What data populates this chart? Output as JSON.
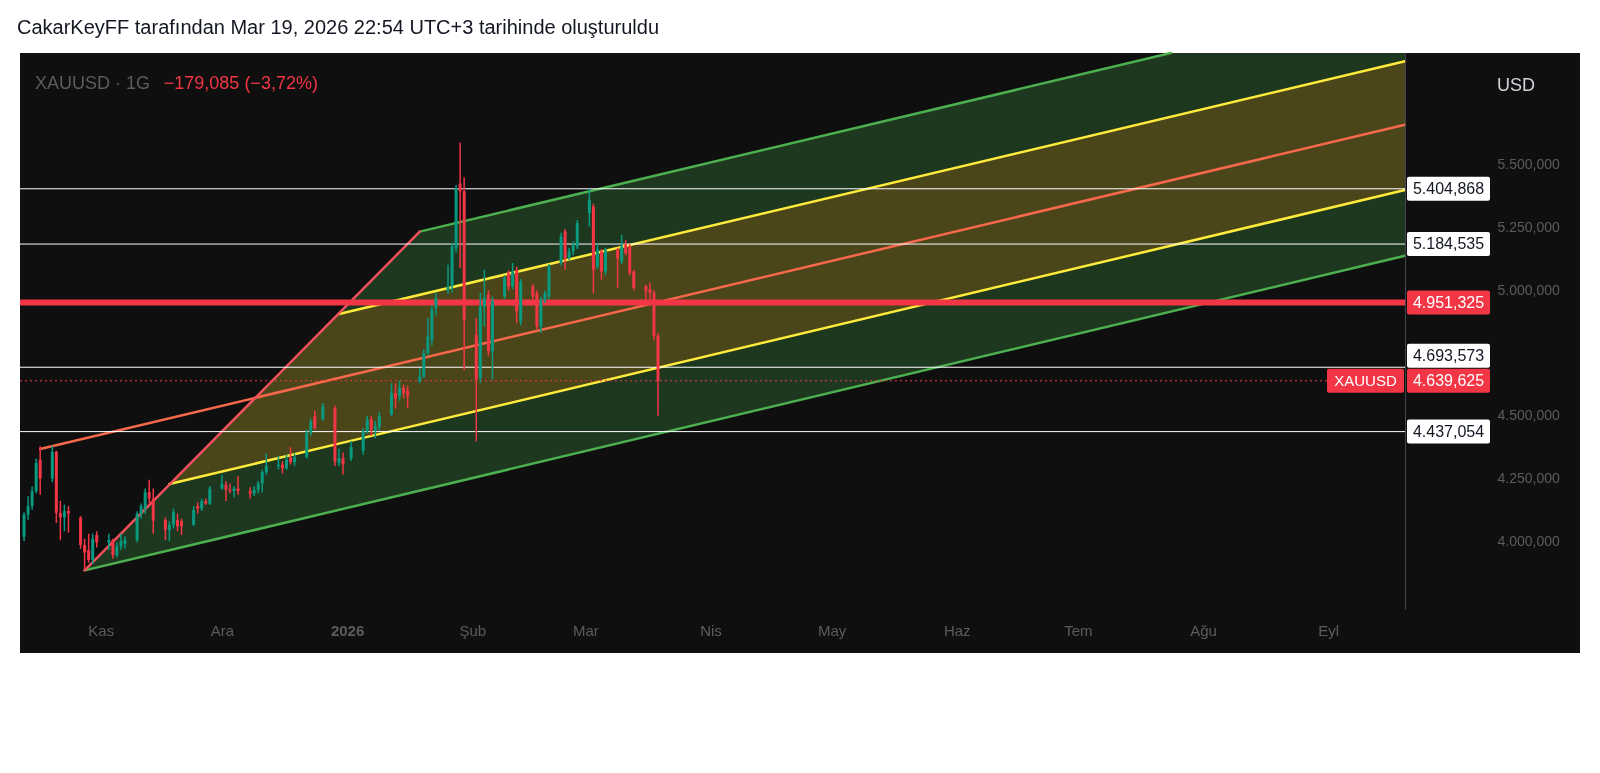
{
  "chart_data": {
    "type": "candlestick",
    "title": "CakarKeyFF tarafından Mar 19, 2026 22:54 UTC+3 tarihinde oluşturuldu",
    "ylabel": "USD",
    "annotations": [
      "XAUUSD · 1G",
      "−179,085 (−3,72%)",
      {
        "text": "XAUUSD",
        "y": 4639.625
      }
    ],
    "x": [
      "2025-10-13",
      "2025-10-14",
      "2025-10-15",
      "2025-10-16",
      "2025-10-17",
      "2025-10-20",
      "2025-10-21",
      "2025-10-22",
      "2025-10-23",
      "2025-10-24",
      "2025-10-27",
      "2025-10-28",
      "2025-10-29",
      "2025-10-30",
      "2025-10-31",
      "2025-11-03",
      "2025-11-04",
      "2025-11-05",
      "2025-11-06",
      "2025-11-07",
      "2025-11-10",
      "2025-11-11",
      "2025-11-12",
      "2025-11-13",
      "2025-11-14",
      "2025-11-17",
      "2025-11-18",
      "2025-11-19",
      "2025-11-20",
      "2025-11-21",
      "2025-11-24",
      "2025-11-25",
      "2025-11-26",
      "2025-11-27",
      "2025-11-28",
      "2025-12-01",
      "2025-12-02",
      "2025-12-03",
      "2025-12-04",
      "2025-12-05",
      "2025-12-08",
      "2025-12-09",
      "2025-12-10",
      "2025-12-11",
      "2025-12-12",
      "2025-12-15",
      "2025-12-16",
      "2025-12-17",
      "2025-12-18",
      "2025-12-19",
      "2025-12-22",
      "2025-12-23",
      "2025-12-24",
      "2025-12-26",
      "2025-12-29",
      "2025-12-30",
      "2025-12-31",
      "2026-01-02",
      "2026-01-05",
      "2026-01-06",
      "2026-01-07",
      "2026-01-08",
      "2026-01-09",
      "2026-01-12",
      "2026-01-13",
      "2026-01-14",
      "2026-01-15",
      "2026-01-16",
      "2026-01-19",
      "2026-01-20",
      "2026-01-21",
      "2026-01-22",
      "2026-01-23",
      "2026-01-26",
      "2026-01-27",
      "2026-01-28",
      "2026-01-29",
      "2026-01-30",
      "2026-02-02",
      "2026-02-03",
      "2026-02-04",
      "2026-02-05",
      "2026-02-06",
      "2026-02-09",
      "2026-02-10",
      "2026-02-11",
      "2026-02-12",
      "2026-02-13",
      "2026-02-16",
      "2026-02-17",
      "2026-02-18",
      "2026-02-19",
      "2026-02-20",
      "2026-02-23",
      "2026-02-24",
      "2026-02-25",
      "2026-02-26",
      "2026-02-27",
      "2026-03-02",
      "2026-03-03",
      "2026-03-04",
      "2026-03-05",
      "2026-03-06",
      "2026-03-09",
      "2026-03-10",
      "2026-03-11",
      "2026-03-12",
      "2026-03-13",
      "2026-03-16",
      "2026-03-17",
      "2026-03-18",
      "2026-03-19"
    ],
    "ohlc": [
      [
        4018,
        4116,
        4000,
        4106
      ],
      [
        4106,
        4179,
        4086,
        4140
      ],
      [
        4140,
        4218,
        4126,
        4199
      ],
      [
        4199,
        4330,
        4190,
        4312
      ],
      [
        4325,
        4379,
        4185,
        4250
      ],
      [
        4250,
        4381,
        4235,
        4356
      ],
      [
        4356,
        4361,
        4073,
        4113
      ],
      [
        4113,
        4161,
        4004,
        4095
      ],
      [
        4095,
        4146,
        4040,
        4120
      ],
      [
        4120,
        4140,
        4035,
        4110
      ],
      [
        4095,
        4100,
        3970,
        3985
      ],
      [
        3985,
        4010,
        3886,
        3955
      ],
      [
        3965,
        4030,
        3915,
        3925
      ],
      [
        3925,
        4030,
        3910,
        4010
      ],
      [
        4025,
        4040,
        3975,
        3995
      ],
      [
        3995,
        4030,
        3965,
        4005
      ],
      [
        4005,
        4010,
        3930,
        3945
      ],
      [
        3945,
        3995,
        3935,
        3980
      ],
      [
        3980,
        4030,
        3965,
        4000
      ],
      [
        3990,
        4020,
        3970,
        4005
      ],
      [
        4005,
        4120,
        3995,
        4110
      ],
      [
        4110,
        4150,
        4090,
        4140
      ],
      [
        4130,
        4210,
        4110,
        4195
      ],
      [
        4195,
        4245,
        4150,
        4170
      ],
      [
        4170,
        4210,
        4030,
        4080
      ],
      [
        4085,
        4095,
        4005,
        4045
      ],
      [
        4045,
        4080,
        4000,
        4065
      ],
      [
        4065,
        4130,
        4050,
        4115
      ],
      [
        4085,
        4110,
        4040,
        4060
      ],
      [
        4080,
        4090,
        4025,
        4060
      ],
      [
        4065,
        4140,
        4060,
        4125
      ],
      [
        4140,
        4155,
        4110,
        4130
      ],
      [
        4130,
        4170,
        4120,
        4160
      ],
      [
        4160,
        4170,
        4145,
        4150
      ],
      [
        4150,
        4220,
        4145,
        4210
      ],
      [
        4210,
        4265,
        4205,
        4230
      ],
      [
        4225,
        4240,
        4160,
        4205
      ],
      [
        4205,
        4230,
        4190,
        4200
      ],
      [
        4200,
        4220,
        4175,
        4210
      ],
      [
        4210,
        4260,
        4185,
        4200
      ],
      [
        4200,
        4215,
        4170,
        4190
      ],
      [
        4190,
        4220,
        4180,
        4205
      ],
      [
        4205,
        4240,
        4190,
        4230
      ],
      [
        4230,
        4285,
        4195,
        4275
      ],
      [
        4275,
        4350,
        4265,
        4300
      ],
      [
        4300,
        4340,
        4285,
        4305
      ],
      [
        4305,
        4320,
        4270,
        4290
      ],
      [
        4290,
        4345,
        4285,
        4325
      ],
      [
        4335,
        4375,
        4305,
        4315
      ],
      [
        4315,
        4350,
        4300,
        4335
      ],
      [
        4335,
        4445,
        4330,
        4432
      ],
      [
        4432,
        4490,
        4420,
        4478
      ],
      [
        4498,
        4520,
        4445,
        4450
      ],
      [
        4485,
        4551,
        4480,
        4538
      ],
      [
        4531,
        4540,
        4300,
        4319
      ],
      [
        4312,
        4370,
        4300,
        4332
      ],
      [
        4332,
        4355,
        4266,
        4306
      ],
      [
        4330,
        4400,
        4320,
        4375
      ],
      [
        4360,
        4450,
        4345,
        4438
      ],
      [
        4438,
        4500,
        4430,
        4485
      ],
      [
        4485,
        4500,
        4420,
        4445
      ],
      [
        4440,
        4480,
        4410,
        4458
      ],
      [
        4455,
        4515,
        4440,
        4498
      ],
      [
        4505,
        4630,
        4500,
        4591
      ],
      [
        4590,
        4630,
        4530,
        4570
      ],
      [
        4578,
        4640,
        4560,
        4611
      ],
      [
        4611,
        4625,
        4570,
        4590
      ],
      [
        4600,
        4620,
        4531,
        4580
      ],
      [
        4637,
        4690,
        4630,
        4657
      ],
      [
        4657,
        4765,
        4650,
        4750
      ],
      [
        4750,
        4890,
        4740,
        4816
      ],
      [
        4803,
        4940,
        4780,
        4923
      ],
      [
        4930,
        4990,
        4900,
        4969
      ],
      [
        5000,
        5102,
        4985,
        5016
      ],
      [
        5016,
        5190,
        4990,
        5175
      ],
      [
        5168,
        5420,
        5150,
        5407
      ],
      [
        5425,
        5589,
        5089,
        5395
      ],
      [
        5395,
        5450,
        4683,
        4883
      ],
      [
        4823,
        4890,
        4398,
        4644
      ],
      [
        4651,
        4990,
        4630,
        4936
      ],
      [
        4936,
        5082,
        4856,
        4970
      ],
      [
        4982,
        5000,
        4740,
        4757
      ],
      [
        4757,
        4975,
        4644,
        4956
      ],
      [
        4976,
        5060,
        4965,
        5049
      ],
      [
        5069,
        5080,
        5000,
        5016
      ],
      [
        5016,
        5109,
        5005,
        5075
      ],
      [
        5082,
        5095,
        4870,
        4916
      ],
      [
        4876,
        5045,
        4860,
        5036
      ],
      [
        5016,
        5025,
        4965,
        4976
      ],
      [
        4989,
        5000,
        4845,
        4856
      ],
      [
        4856,
        4975,
        4830,
        4963
      ],
      [
        4963,
        5000,
        4950,
        4989
      ],
      [
        4976,
        5105,
        4965,
        5095
      ],
      [
        5109,
        5230,
        5100,
        5215
      ],
      [
        5235,
        5245,
        5082,
        5128
      ],
      [
        5128,
        5170,
        5120,
        5155
      ],
      [
        5155,
        5195,
        5140,
        5182
      ],
      [
        5175,
        5280,
        5165,
        5268
      ],
      [
        5308,
        5405,
        5255,
        5361
      ],
      [
        5334,
        5345,
        4989,
        5082
      ],
      [
        5095,
        5188,
        5085,
        5162
      ],
      [
        5155,
        5165,
        5042,
        5075
      ],
      [
        5075,
        5170,
        5060,
        5162
      ],
      [
        5162,
        5170,
        5009,
        5128
      ],
      [
        5115,
        5221,
        5105,
        5175
      ],
      [
        5182,
        5200,
        5140,
        5148
      ],
      [
        5175,
        5185,
        5060,
        5069
      ],
      [
        5075,
        5082,
        5000,
        5009
      ],
      [
        5016,
        5022,
        4963,
        4996
      ],
      [
        5003,
        5030,
        4963,
        4990
      ],
      [
        4989,
        5000,
        4800,
        4819
      ],
      [
        4819,
        4830,
        4500,
        4640
      ]
    ],
    "colors": [
      "#089981",
      "#089981",
      "#089981",
      "#089981",
      "#f23645",
      "#089981",
      "#f23645",
      "#f23645",
      "#089981",
      "#f23645",
      "#f23645",
      "#f23645",
      "#f23645",
      "#089981",
      "#f23645",
      "#089981",
      "#f23645",
      "#089981",
      "#089981",
      "#089981",
      "#089981",
      "#089981",
      "#089981",
      "#f23645",
      "#f23645",
      "#f23645",
      "#089981",
      "#089981",
      "#f23645",
      "#f23645",
      "#089981",
      "#f23645",
      "#089981",
      "#f23645",
      "#089981",
      "#089981",
      "#f23645",
      "#f23645",
      "#089981",
      "#f23645",
      "#f23645",
      "#089981",
      "#089981",
      "#089981",
      "#089981",
      "#089981",
      "#f23645",
      "#089981",
      "#f23645",
      "#089981",
      "#089981",
      "#089981",
      "#f23645",
      "#089981",
      "#f23645",
      "#089981",
      "#f23645",
      "#089981",
      "#089981",
      "#089981",
      "#f23645",
      "#089981",
      "#089981",
      "#089981",
      "#f23645",
      "#089981",
      "#f23645",
      "#f23645",
      "#089981",
      "#089981",
      "#089981",
      "#089981",
      "#089981",
      "#089981",
      "#089981",
      "#089981",
      "#f23645",
      "#f23645",
      "#f23645",
      "#089981",
      "#089981",
      "#f23645",
      "#089981",
      "#089981",
      "#f23645",
      "#089981",
      "#f23645",
      "#089981",
      "#f23645",
      "#f23645",
      "#089981",
      "#089981",
      "#089981",
      "#089981",
      "#f23645",
      "#089981",
      "#089981",
      "#089981",
      "#089981",
      "#f23645",
      "#089981",
      "#f23645",
      "#089981",
      "#f23645",
      "#089981",
      "#f23645",
      "#f23645",
      "#f23645",
      "#f23645",
      "#f23645",
      "#f23645",
      "#f23645"
    ],
    "series": [
      {
        "type": "line",
        "color": "#4caf50",
        "x": [
          "2025-10-28",
          "2025-11-18",
          "2026-09-20"
        ],
        "values": [
          3884,
          3964,
          5138
        ],
        "lower": [
          3884,
          3964,
          5138
        ],
        "upper": [
          3884,
          4228,
          5400
        ]
      },
      {
        "type": "line",
        "color": "#ffeb3b",
        "x": [
          "2025-11-18",
          "2025-12-30",
          "2026-09-20"
        ],
        "values": [
          4228,
          4389,
          5400
        ],
        "lower": [
          4228,
          4389,
          5400
        ],
        "upper": [
          4228,
          4906,
          5913
        ]
      },
      {
        "type": "line",
        "color": "#ffeb3b",
        "x": [
          "2025-12-30",
          "2026-09-20"
        ],
        "values": [
          4906,
          5913
        ]
      },
      {
        "type": "line",
        "color": "#4caf50",
        "x": [
          "2025-12-30",
          "2026-01-19",
          "2026-07-24",
          "2026-09-20"
        ],
        "values": [
          null,
          5234,
          5946,
          null
        ],
        "lower": [
          4906,
          4982,
          5691,
          5913
        ],
        "upper": [
          4906,
          5234,
          5946,
          5946
        ]
      },
      {
        "type": "line",
        "color": "#f7694a",
        "x": [
          "2025-10-17",
          "2026-09-20"
        ],
        "values": [
          4368,
          5660
        ]
      },
      {
        "type": "line",
        "color": "#f0505c",
        "x": [
          "2025-10-28",
          "2026-01-19"
        ],
        "values": [
          3884,
          5234
        ]
      }
    ],
    "ref_lines": [
      {
        "axis": "y",
        "value": 5404.868,
        "label": "5.404,868",
        "color": "#ffffff"
      },
      {
        "axis": "y",
        "value": 5184.535,
        "label": "5.184,535",
        "color": "#ffffff"
      },
      {
        "axis": "y",
        "value": 4951.325,
        "label": "4.951,325",
        "color": "#f23645"
      },
      {
        "axis": "y",
        "value": 4693.573,
        "label": "4.693,573",
        "color": "#ffffff"
      },
      {
        "axis": "y",
        "value": 4639.625,
        "label": "4.639,625",
        "color": "#f23645",
        "line_style": "dotted"
      },
      {
        "axis": "y",
        "value": 4437.054,
        "label": "4.437,054",
        "color": "#ffffff"
      }
    ],
    "xlim": [
      "2025-10-12",
      "2026-09-20"
    ],
    "ylim": [
      3730,
      5946
    ],
    "xticks": [
      {
        "value": "2025-11-01",
        "label": "Kas"
      },
      {
        "value": "2025-12-01",
        "label": "Ara"
      },
      {
        "value": "2026-01-01",
        "label": "2026"
      },
      {
        "value": "2026-02-01",
        "label": "Şub"
      },
      {
        "value": "2026-03-01",
        "label": "Mar"
      },
      {
        "value": "2026-04-01",
        "label": "Nis"
      },
      {
        "value": "2026-05-01",
        "label": "May"
      },
      {
        "value": "2026-06-01",
        "label": "Haz"
      },
      {
        "value": "2026-07-01",
        "label": "Tem"
      },
      {
        "value": "2026-08-01",
        "label": "Ağu"
      },
      {
        "value": "2026-09-01",
        "label": "Eyl"
      }
    ],
    "yticks": [
      {
        "value": 5500,
        "label": "5.500,000"
      },
      {
        "value": 5250,
        "label": "5.250,000"
      },
      {
        "value": 5000,
        "label": "5.000,000"
      },
      {
        "value": 4500,
        "label": "4.500,000"
      },
      {
        "value": 4250,
        "label": "4.250,000"
      },
      {
        "value": 4000,
        "label": "4.000,000"
      }
    ]
  }
}
